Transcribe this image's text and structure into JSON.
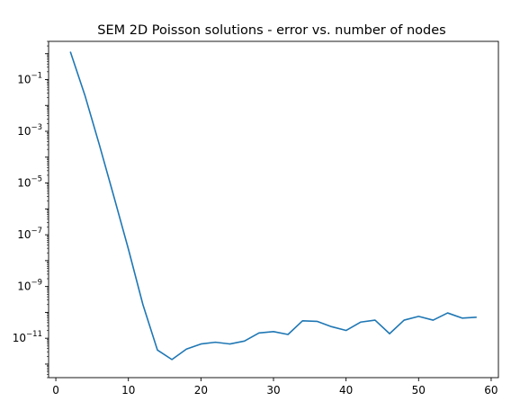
{
  "chart_data": {
    "type": "line",
    "title": "SEM 2D Poisson solutions - error vs. number of nodes",
    "xlabel": "",
    "ylabel": "",
    "xlim": [
      -1,
      61
    ],
    "ylim": [
      3e-13,
      3.0
    ],
    "y_scale": "log",
    "grid": false,
    "x_ticks": [
      0,
      10,
      20,
      30,
      40,
      50,
      60
    ],
    "y_ticks": [
      {
        "value": 0.1,
        "base": "10",
        "exp": "−1"
      },
      {
        "value": 0.001,
        "base": "10",
        "exp": "−3"
      },
      {
        "value": 1e-05,
        "base": "10",
        "exp": "−5"
      },
      {
        "value": 1e-07,
        "base": "10",
        "exp": "−7"
      },
      {
        "value": 1e-09,
        "base": "10",
        "exp": "−9"
      },
      {
        "value": 1e-11,
        "base": "10",
        "exp": "−11"
      }
    ],
    "series": [
      {
        "color": "#1f77b4",
        "x": [
          2,
          4,
          6,
          8,
          10,
          12,
          14,
          16,
          18,
          20,
          22,
          24,
          26,
          28,
          30,
          32,
          34,
          36,
          38,
          40,
          42,
          44,
          46,
          48,
          50,
          52,
          54,
          56,
          58
        ],
        "y": [
          1.2,
          0.025,
          0.0003,
          3e-06,
          2.8e-08,
          2e-10,
          3.5e-12,
          1.5e-12,
          3.8e-12,
          6e-12,
          7e-12,
          6e-12,
          7.8e-12,
          1.6e-11,
          1.8e-11,
          1.4e-11,
          4.7e-11,
          4.5e-11,
          2.8e-11,
          2e-11,
          4.2e-11,
          5e-11,
          1.5e-11,
          5e-11,
          7e-11,
          5e-11,
          9.5e-11,
          6e-11,
          6.5e-11
        ]
      }
    ]
  }
}
